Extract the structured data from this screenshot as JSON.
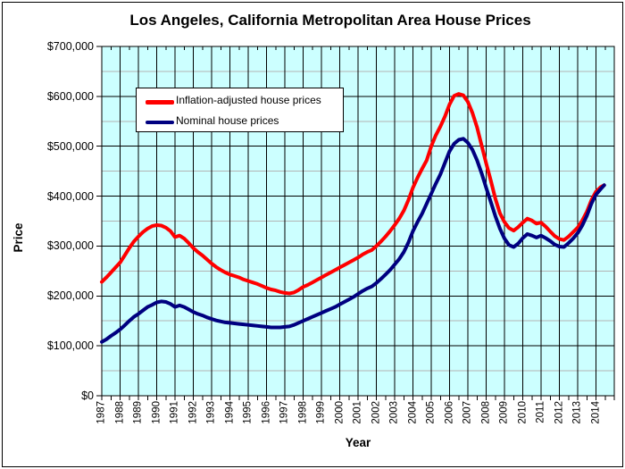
{
  "chart_data": {
    "type": "line",
    "title": "Los Angeles, California Metropolitan Area House Prices",
    "xlabel": "Year",
    "ylabel": "Price",
    "xlim": [
      1987,
      2015
    ],
    "ylim": [
      0,
      700000
    ],
    "grid": {
      "background": "#CCFFFF",
      "major_color": "#000000",
      "minor_color": "#b3b3b3",
      "major_step_usd": 100000,
      "minor_step_usd": 50000,
      "vertical_step_years": 1
    },
    "y_tick_labels": [
      "$0",
      "$100,000",
      "$200,000",
      "$300,000",
      "$400,000",
      "$500,000",
      "$600,000",
      "$700,000"
    ],
    "x_tick_labels": [
      "1987",
      "1988",
      "1989",
      "1990",
      "1991",
      "1992",
      "1993",
      "1994",
      "1995",
      "1996",
      "1997",
      "1998",
      "1999",
      "2000",
      "2001",
      "2002",
      "2003",
      "2004",
      "2005",
      "2006",
      "2007",
      "2008",
      "2009",
      "2010",
      "2011",
      "2012",
      "2013",
      "2014"
    ],
    "legend": {
      "position": "top-left-inside",
      "entries": [
        {
          "label": "Inflation-adjusted house prices",
          "color": "#FF0000"
        },
        {
          "label": "Nominal house prices",
          "color": "#000080"
        }
      ]
    },
    "x_start": 1987.0,
    "x_step": 0.25,
    "x_final": 2014.45,
    "series": [
      {
        "name": "Inflation-adjusted house prices",
        "color": "#FF0000",
        "values_usd_thousands": [
          228,
          237,
          247,
          257,
          267,
          281,
          296,
          309,
          319,
          328,
          335,
          340,
          342,
          341,
          337,
          330,
          318,
          321,
          315,
          306,
          296,
          288,
          281,
          273,
          265,
          258,
          252,
          247,
          243,
          240,
          237,
          233,
          230,
          227,
          224,
          220,
          216,
          213,
          211,
          208,
          206,
          205,
          207,
          212,
          218,
          222,
          227,
          232,
          237,
          242,
          247,
          252,
          257,
          262,
          267,
          272,
          277,
          283,
          288,
          292,
          300,
          309,
          319,
          330,
          342,
          355,
          371,
          392,
          417,
          437,
          455,
          472,
          500,
          522,
          540,
          560,
          584,
          601,
          605,
          602,
          589,
          567,
          538,
          502,
          466,
          432,
          395,
          366,
          348,
          336,
          331,
          338,
          347,
          355,
          351,
          345,
          347,
          339,
          329,
          320,
          314,
          312,
          319,
          328,
          337,
          351,
          369,
          392,
          409,
          418,
          422
        ]
      },
      {
        "name": "Nominal house prices",
        "color": "#000080",
        "values_usd_thousands": [
          108,
          113,
          120,
          126,
          133,
          141,
          150,
          158,
          164,
          171,
          178,
          182,
          187,
          189,
          188,
          184,
          178,
          181,
          178,
          173,
          168,
          164,
          161,
          157,
          154,
          151,
          149,
          147,
          146,
          145,
          144,
          143,
          142,
          141,
          140,
          139,
          138,
          137,
          137,
          137,
          138,
          139,
          142,
          146,
          150,
          154,
          158,
          162,
          166,
          170,
          174,
          178,
          183,
          188,
          193,
          198,
          204,
          210,
          215,
          219,
          226,
          234,
          243,
          252,
          263,
          274,
          288,
          307,
          330,
          348,
          365,
          385,
          405,
          425,
          444,
          467,
          490,
          505,
          513,
          515,
          507,
          493,
          472,
          446,
          417,
          389,
          360,
          335,
          315,
          302,
          298,
          305,
          316,
          324,
          321,
          317,
          321,
          316,
          310,
          303,
          299,
          298,
          306,
          315,
          326,
          341,
          361,
          385,
          403,
          414,
          422
        ]
      }
    ],
    "annotations": {
      "peak_1990_real_usd": 342000,
      "peak_2006_real_usd": 605000,
      "peak_2006_nominal_usd": 515000,
      "trough_2009_nominal_usd": 298000,
      "end_2014_usd": 422000
    }
  }
}
